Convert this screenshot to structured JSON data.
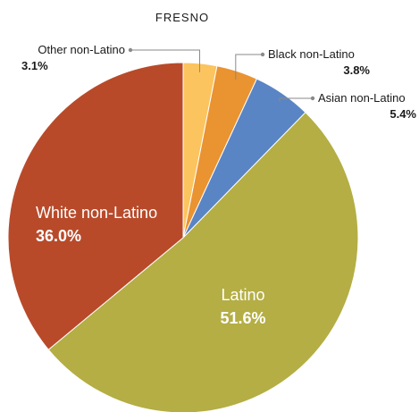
{
  "chart_data": {
    "type": "pie",
    "title": "FRESNO",
    "slices": [
      {
        "label": "Other non-Latino",
        "value": 3.1,
        "display": "3.1%",
        "color": "#fcc45e",
        "label_position": "outside"
      },
      {
        "label": "Black non-Latino",
        "value": 3.8,
        "display": "3.8%",
        "color": "#ea9331",
        "label_position": "outside"
      },
      {
        "label": "Asian non-Latino",
        "value": 5.4,
        "display": "5.4%",
        "color": "#5a85c4",
        "label_position": "outside"
      },
      {
        "label": "Latino",
        "value": 51.6,
        "display": "51.6%",
        "color": "#b4ae45",
        "label_position": "inside"
      },
      {
        "label": "White non-Latino",
        "value": 36.0,
        "display": "36.0%",
        "color": "#b84a2a",
        "label_position": "inside"
      }
    ]
  }
}
